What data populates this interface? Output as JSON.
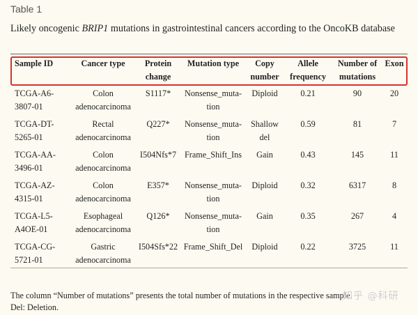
{
  "table_label": "Table 1",
  "caption": {
    "prefix": "Likely oncogenic ",
    "gene": "BRIP1",
    "suffix": " mutations in gastrointestinal cancers according to the OncoKB database"
  },
  "table": {
    "headers": [
      [
        "Sample ID",
        ""
      ],
      [
        "Cancer type",
        ""
      ],
      [
        "Protein",
        "change"
      ],
      [
        "Mutation type",
        ""
      ],
      [
        "Copy",
        "number"
      ],
      [
        "Allele",
        "frequency"
      ],
      [
        "Number of",
        "mutations"
      ],
      [
        "Exon",
        ""
      ]
    ],
    "rows": [
      {
        "sample_id": [
          "TCGA-A6-",
          "3807-01"
        ],
        "cancer_type": [
          "Colon",
          "adenocarcinoma"
        ],
        "protein_change": "S1117*",
        "mutation_type": [
          "Nonsense_muta-",
          "tion"
        ],
        "copy_number": [
          "Diploid",
          ""
        ],
        "allele_frequency": "0.21",
        "number_of_mutations": "90",
        "exon": "20"
      },
      {
        "sample_id": [
          "TCGA-DT-",
          "5265-01"
        ],
        "cancer_type": [
          "Rectal",
          "adenocarcinoma"
        ],
        "protein_change": "Q227*",
        "mutation_type": [
          "Nonsense_muta-",
          "tion"
        ],
        "copy_number": [
          "Shallow",
          "del"
        ],
        "allele_frequency": "0.59",
        "number_of_mutations": "81",
        "exon": "7"
      },
      {
        "sample_id": [
          "TCGA-AA-",
          "3496-01"
        ],
        "cancer_type": [
          "Colon",
          "adenocarcinoma"
        ],
        "protein_change": "I504Nfs*7",
        "mutation_type": [
          "Frame_Shift_Ins",
          ""
        ],
        "copy_number": [
          "Gain",
          ""
        ],
        "allele_frequency": "0.43",
        "number_of_mutations": "145",
        "exon": "11"
      },
      {
        "sample_id": [
          "TCGA-AZ-",
          "4315-01"
        ],
        "cancer_type": [
          "Colon",
          "adenocarcinoma"
        ],
        "protein_change": "E357*",
        "mutation_type": [
          "Nonsense_muta-",
          "tion"
        ],
        "copy_number": [
          "Diploid",
          ""
        ],
        "allele_frequency": "0.32",
        "number_of_mutations": "6317",
        "exon": "8"
      },
      {
        "sample_id": [
          "TCGA-L5-",
          "A4OE-01"
        ],
        "cancer_type": [
          "Esophageal",
          "adenocarcinoma"
        ],
        "protein_change": "Q126*",
        "mutation_type": [
          "Nonsense_muta-",
          "tion"
        ],
        "copy_number": [
          "Gain",
          ""
        ],
        "allele_frequency": "0.35",
        "number_of_mutations": "267",
        "exon": "4"
      },
      {
        "sample_id": [
          "TCGA-CG-",
          "5721-01"
        ],
        "cancer_type": [
          "Gastric",
          "adenocarcinoma"
        ],
        "protein_change": "I504Sfs*22",
        "mutation_type": [
          "Frame_Shift_Del",
          ""
        ],
        "copy_number": [
          "Diploid",
          ""
        ],
        "allele_frequency": "0.22",
        "number_of_mutations": "3725",
        "exon": "11"
      }
    ]
  },
  "footnote": {
    "line1": "The column “Number of mutations” presents the total number of mutations in the respective sample.",
    "line2": "Del: Deletion."
  },
  "watermark": "知乎 @科研",
  "colors": {
    "background": "#fdfbf1",
    "highlight_border": "#d8312a",
    "text": "#222222"
  }
}
